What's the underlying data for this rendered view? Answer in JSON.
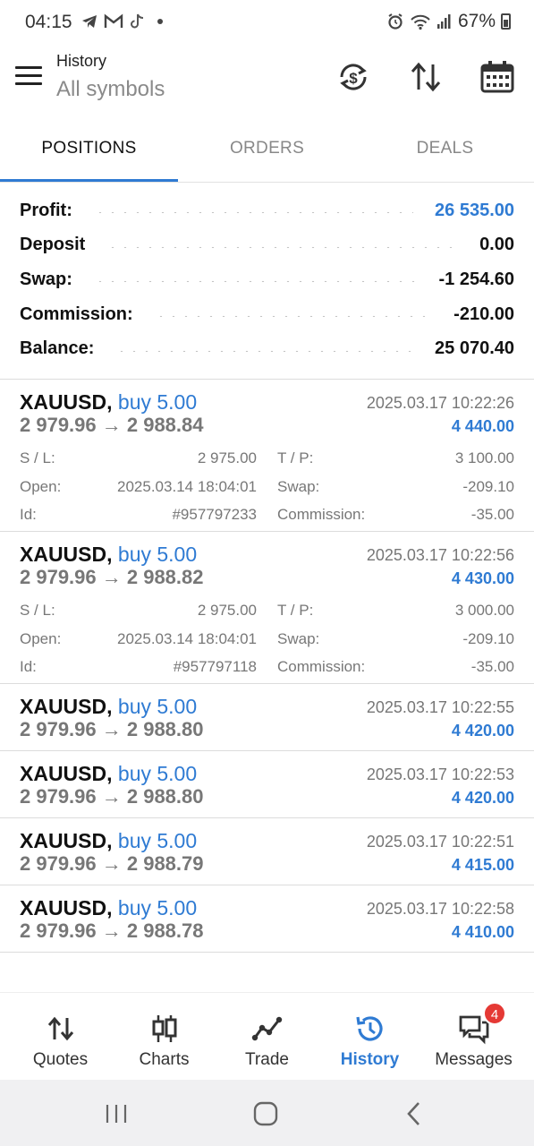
{
  "status_bar": {
    "time": "04:15",
    "battery": "67%"
  },
  "header": {
    "subtitle": "History",
    "title": "All symbols"
  },
  "tabs": [
    {
      "label": "POSITIONS",
      "active": true
    },
    {
      "label": "ORDERS",
      "active": false
    },
    {
      "label": "DEALS",
      "active": false
    }
  ],
  "summary": {
    "profit": {
      "label": "Profit:",
      "value": "26 535.00"
    },
    "deposit": {
      "label": "Deposit",
      "value": "0.00"
    },
    "swap": {
      "label": "Swap:",
      "value": "-1 254.60"
    },
    "commission": {
      "label": "Commission:",
      "value": "-210.00"
    },
    "balance": {
      "label": "Balance:",
      "value": "25 070.40"
    }
  },
  "detail_labels": {
    "sl": "S / L:",
    "tp": "T / P:",
    "open": "Open:",
    "swap": "Swap:",
    "id": "Id:",
    "commission": "Commission:"
  },
  "positions": [
    {
      "symbol": "XAUUSD,",
      "side": "buy 5.00",
      "price": "2 979.96 → 2 988.84",
      "time": "2025.03.17 10:22:26",
      "profit": "4 440.00",
      "sl": "2 975.00",
      "tp": "3 100.00",
      "open": "2025.03.14 18:04:01",
      "swap": "-209.10",
      "id": "#957797233",
      "commission": "-35.00"
    },
    {
      "symbol": "XAUUSD,",
      "side": "buy 5.00",
      "price": "2 979.96 → 2 988.82",
      "time": "2025.03.17 10:22:56",
      "profit": "4 430.00",
      "sl": "2 975.00",
      "tp": "3 000.00",
      "open": "2025.03.14 18:04:01",
      "swap": "-209.10",
      "id": "#957797118",
      "commission": "-35.00"
    },
    {
      "symbol": "XAUUSD,",
      "side": "buy 5.00",
      "price": "2 979.96 → 2 988.80",
      "time": "2025.03.17 10:22:55",
      "profit": "4 420.00"
    },
    {
      "symbol": "XAUUSD,",
      "side": "buy 5.00",
      "price": "2 979.96 → 2 988.80",
      "time": "2025.03.17 10:22:53",
      "profit": "4 420.00"
    },
    {
      "symbol": "XAUUSD,",
      "side": "buy 5.00",
      "price": "2 979.96 → 2 988.79",
      "time": "2025.03.17 10:22:51",
      "profit": "4 415.00"
    },
    {
      "symbol": "XAUUSD,",
      "side": "buy 5.00",
      "price": "2 979.96 → 2 988.78",
      "time": "2025.03.17 10:22:58",
      "profit": "4 410.00"
    }
  ],
  "bottom_nav": [
    {
      "label": "Quotes",
      "icon": "quotes-icon"
    },
    {
      "label": "Charts",
      "icon": "charts-icon"
    },
    {
      "label": "Trade",
      "icon": "trade-icon"
    },
    {
      "label": "History",
      "icon": "history-icon",
      "active": true
    },
    {
      "label": "Messages",
      "icon": "messages-icon",
      "badge": "4"
    }
  ],
  "colors": {
    "accent": "#2f7bd3",
    "badge": "#e53935"
  }
}
